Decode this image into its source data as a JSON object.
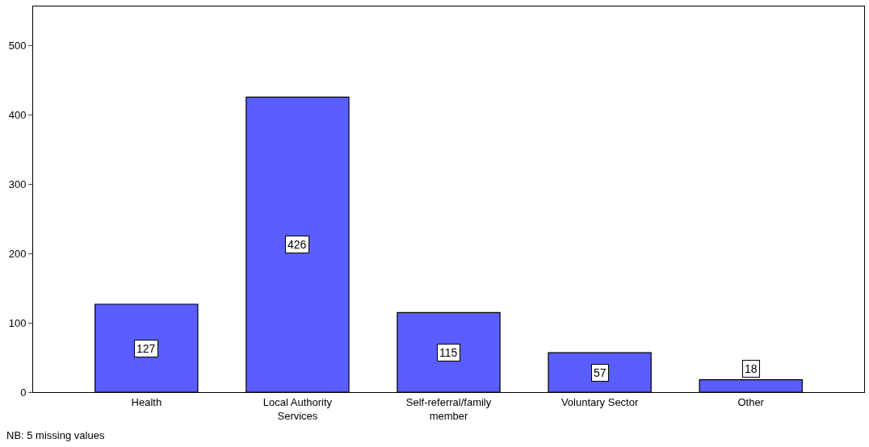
{
  "chart_data": {
    "type": "bar",
    "categories": [
      "Health",
      "Local Authority\nServices",
      "Self-referral/family\nmember",
      "Voluntary Sector",
      "Other"
    ],
    "values": [
      127,
      426,
      115,
      57,
      18
    ],
    "color": "#5a5eff",
    "data_labels": true,
    "ylim": [
      0,
      557
    ],
    "yticks": [
      0,
      100,
      200,
      300,
      400,
      500
    ],
    "legend": false,
    "annotations": [
      "NB: 5 missing values"
    ]
  }
}
